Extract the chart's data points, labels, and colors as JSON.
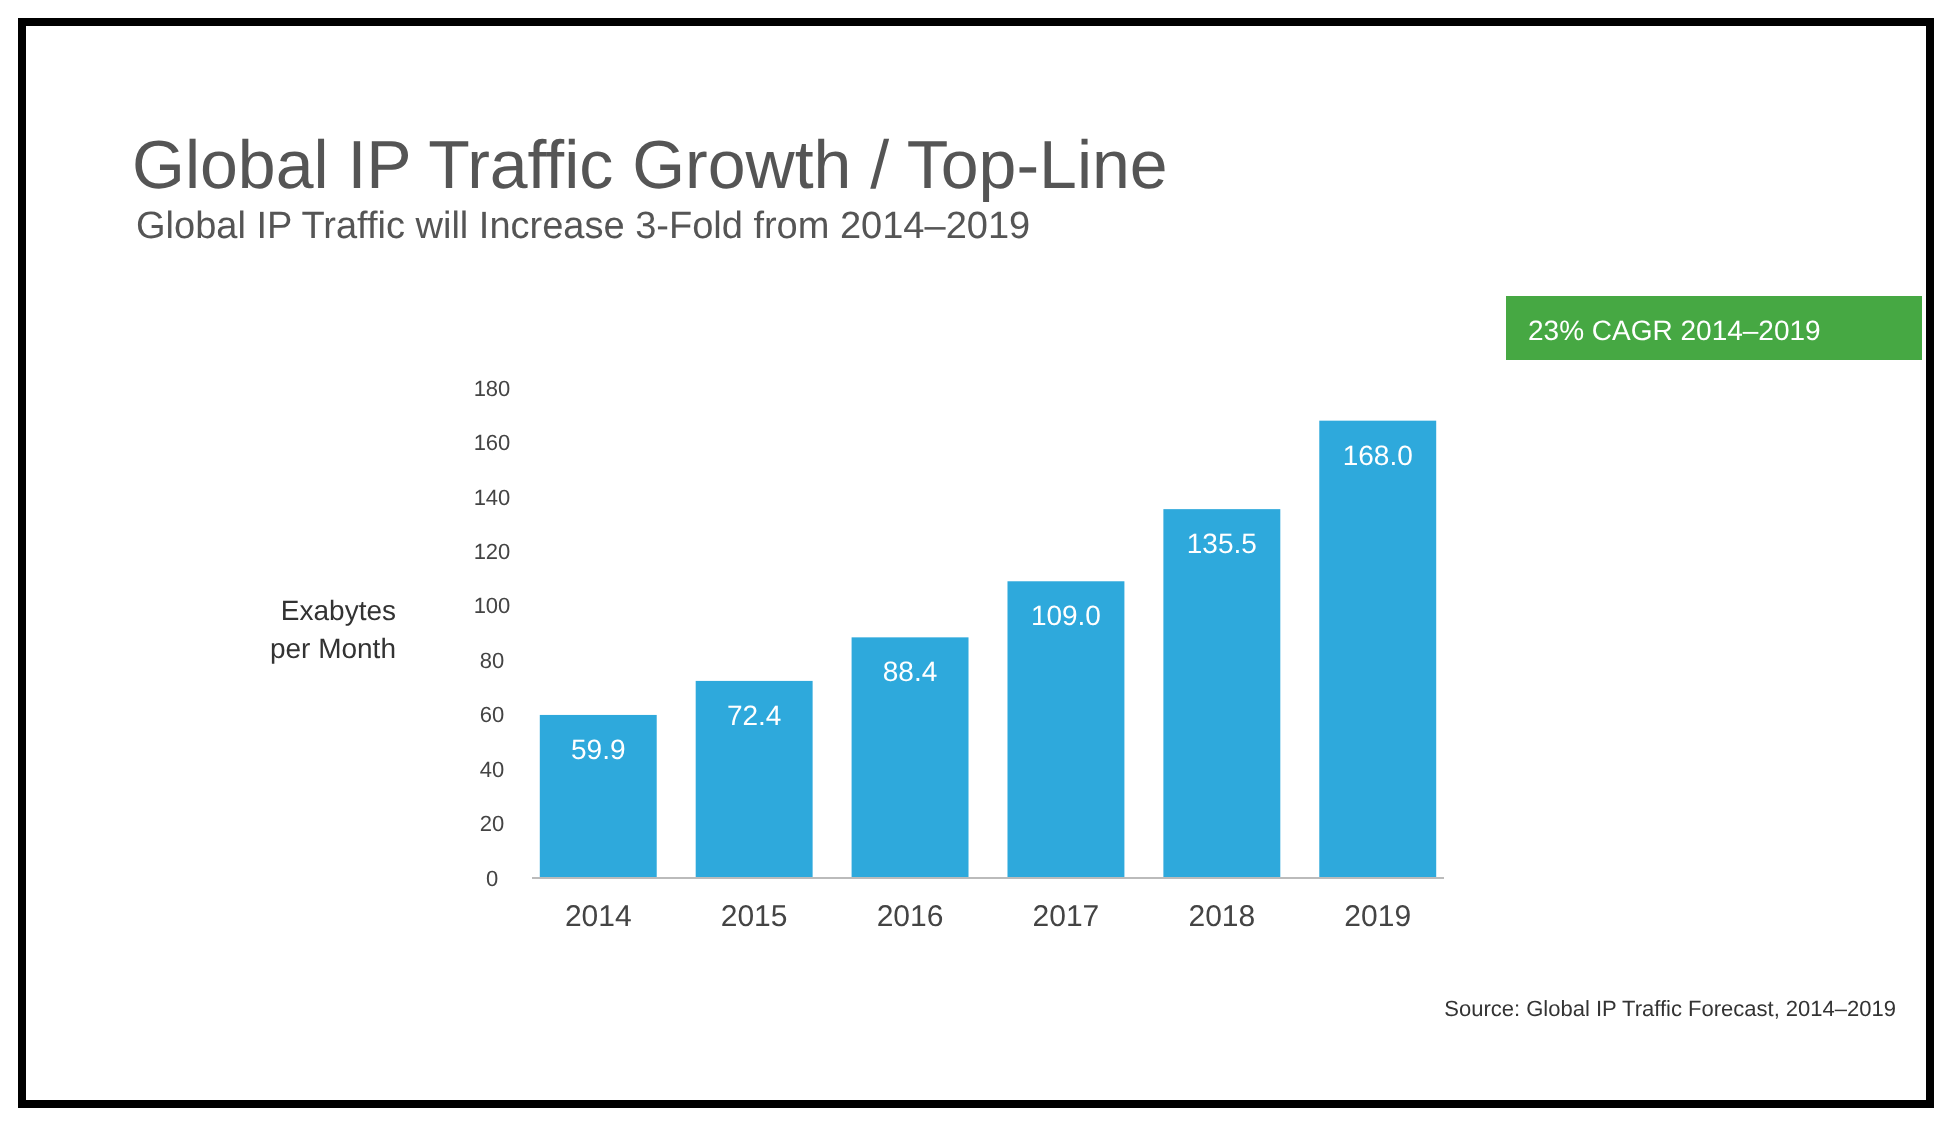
{
  "chart_data": {
    "type": "bar",
    "title": "Global IP Traffic Growth / Top-Line",
    "subtitle": "Global IP Traffic will Increase 3-Fold from 2014–2019",
    "ylabel": "Exabytes per Month",
    "categories": [
      "2014",
      "2015",
      "2016",
      "2017",
      "2018",
      "2019"
    ],
    "values": [
      59.9,
      72.4,
      88.4,
      109.0,
      135.5,
      168.0
    ],
    "value_labels": [
      "59.9",
      "72.4",
      "88.4",
      "109.0",
      "135.5",
      "168.0"
    ],
    "color": "#2ea9dc",
    "ylim": [
      0,
      180
    ],
    "yticks": [
      0,
      20,
      40,
      60,
      80,
      100,
      120,
      140,
      160,
      180
    ],
    "grid": false,
    "annotations": [
      "23% CAGR 2014–2019",
      "Source: Global IP Traffic Forecast, 2014–2019"
    ]
  }
}
